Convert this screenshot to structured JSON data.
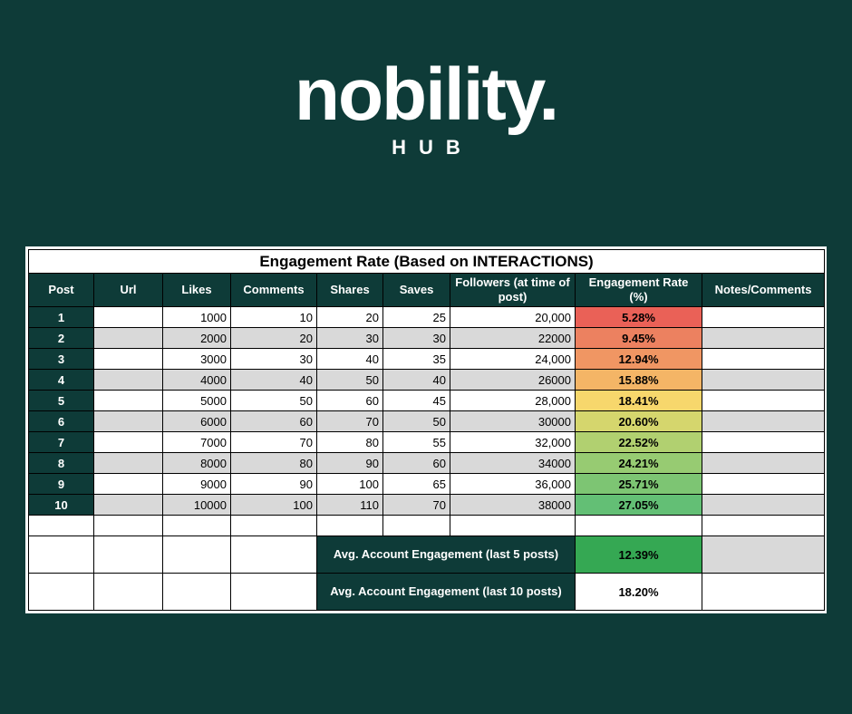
{
  "colors": {
    "background": "#0e3b38",
    "header": "#0e3b38",
    "gray_row": "#d9d9d9",
    "avg5_value_bg": "#35a853",
    "avg10_value_bg": "#ffffff"
  },
  "logo": {
    "wordmark": "nobility.",
    "subtitle": "HUB"
  },
  "table": {
    "title": "Engagement Rate (Based on INTERACTIONS)",
    "headers": [
      "Post",
      "Url",
      "Likes",
      "Comments",
      "Shares",
      "Saves",
      "Followers (at time of post)",
      "Engagement Rate (%)",
      "Notes/Comments"
    ],
    "rows": [
      {
        "post": "1",
        "url": "",
        "likes": "1000",
        "comments": "10",
        "shares": "20",
        "saves": "25",
        "followers": "20,000",
        "rate": "5.28%",
        "rate_color": "#ea6157",
        "notes": ""
      },
      {
        "post": "2",
        "url": "",
        "likes": "2000",
        "comments": "20",
        "shares": "30",
        "saves": "30",
        "followers": "22000",
        "rate": "9.45%",
        "rate_color": "#ec8160",
        "notes": ""
      },
      {
        "post": "3",
        "url": "",
        "likes": "3000",
        "comments": "30",
        "shares": "40",
        "saves": "35",
        "followers": "24,000",
        "rate": "12.94%",
        "rate_color": "#f09663",
        "notes": ""
      },
      {
        "post": "4",
        "url": "",
        "likes": "4000",
        "comments": "40",
        "shares": "50",
        "saves": "40",
        "followers": "26000",
        "rate": "15.88%",
        "rate_color": "#f4b566",
        "notes": ""
      },
      {
        "post": "5",
        "url": "",
        "likes": "5000",
        "comments": "50",
        "shares": "60",
        "saves": "45",
        "followers": "28,000",
        "rate": "18.41%",
        "rate_color": "#f7d76c",
        "notes": ""
      },
      {
        "post": "6",
        "url": "",
        "likes": "6000",
        "comments": "60",
        "shares": "70",
        "saves": "50",
        "followers": "30000",
        "rate": "20.60%",
        "rate_color": "#d5d66d",
        "notes": ""
      },
      {
        "post": "7",
        "url": "",
        "likes": "7000",
        "comments": "70",
        "shares": "80",
        "saves": "55",
        "followers": "32,000",
        "rate": "22.52%",
        "rate_color": "#b1d070",
        "notes": ""
      },
      {
        "post": "8",
        "url": "",
        "likes": "8000",
        "comments": "80",
        "shares": "90",
        "saves": "60",
        "followers": "34000",
        "rate": "24.21%",
        "rate_color": "#97cb72",
        "notes": ""
      },
      {
        "post": "9",
        "url": "",
        "likes": "9000",
        "comments": "90",
        "shares": "100",
        "saves": "65",
        "followers": "36,000",
        "rate": "25.71%",
        "rate_color": "#7dc573",
        "notes": ""
      },
      {
        "post": "10",
        "url": "",
        "likes": "10000",
        "comments": "100",
        "shares": "110",
        "saves": "70",
        "followers": "38000",
        "rate": "27.05%",
        "rate_color": "#63bf75",
        "notes": ""
      }
    ],
    "avg5": {
      "label": "Avg. Account Engagement (last 5 posts)",
      "value": "12.39%",
      "value_bg": "#35a853"
    },
    "avg10": {
      "label": "Avg. Account Engagement (last 10 posts)",
      "value": "18.20%",
      "value_bg": "#ffffff"
    }
  }
}
